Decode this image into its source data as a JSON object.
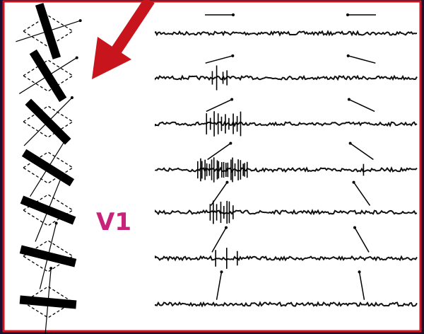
{
  "label": "V1"
}
